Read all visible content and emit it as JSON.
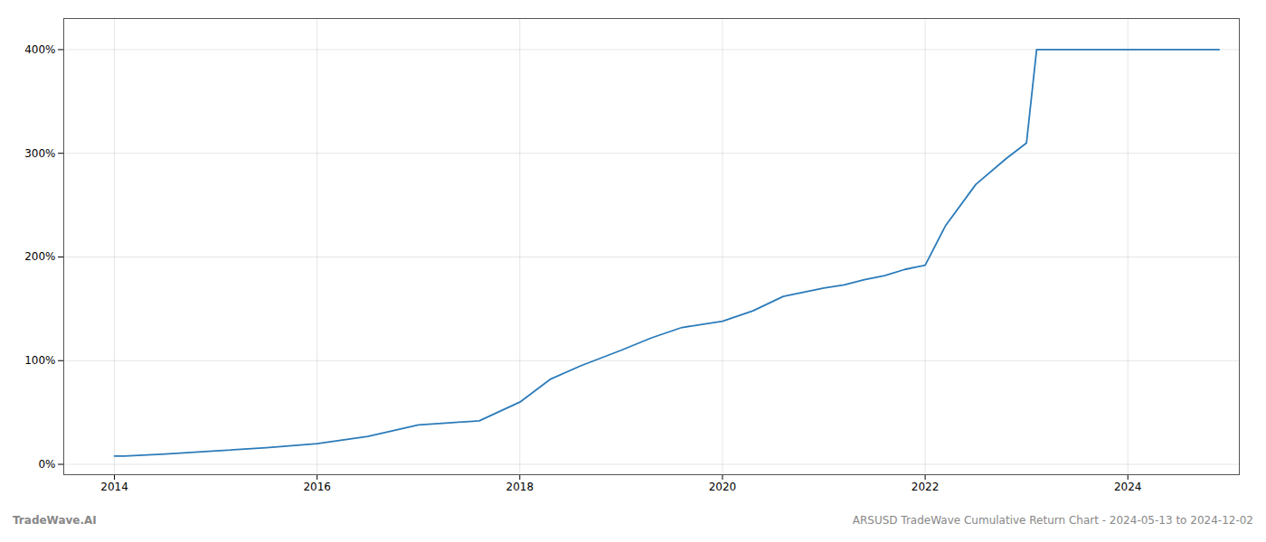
{
  "chart_data": {
    "type": "line",
    "title": "ARSUSD TradeWave Cumulative Return Chart - 2024-05-13 to 2024-12-02",
    "annotations": [
      "TradeWave.AI"
    ],
    "color": "#2b7bba",
    "x": [
      2014.0,
      2014.1,
      2014.5,
      2015.0,
      2015.5,
      2016.0,
      2016.5,
      2017.0,
      2017.3,
      2017.6,
      2018.0,
      2018.3,
      2018.6,
      2019.0,
      2019.3,
      2019.6,
      2020.0,
      2020.3,
      2020.6,
      2021.0,
      2021.2,
      2021.4,
      2021.6,
      2021.8,
      2022.0,
      2022.2,
      2022.5,
      2022.8,
      2023.0,
      2023.1,
      2024.0,
      2024.9
    ],
    "values": [
      8,
      8,
      10,
      13,
      16,
      20,
      27,
      38,
      40,
      42,
      60,
      82,
      95,
      110,
      122,
      132,
      138,
      148,
      162,
      170,
      173,
      178,
      182,
      188,
      192,
      230,
      270,
      295,
      310,
      400,
      400,
      400
    ],
    "xlim": [
      2013.5,
      2025.1
    ],
    "xticks": [
      2014,
      2016,
      2018,
      2020,
      2022,
      2024
    ],
    "ylim": [
      -10,
      430
    ],
    "yticks": [
      {
        "value": 0,
        "label": "0%"
      },
      {
        "value": 100,
        "label": "100%"
      },
      {
        "value": 200,
        "label": "200%"
      },
      {
        "value": 300,
        "label": "300%"
      },
      {
        "value": 400,
        "label": "400%"
      }
    ],
    "grid": true
  }
}
